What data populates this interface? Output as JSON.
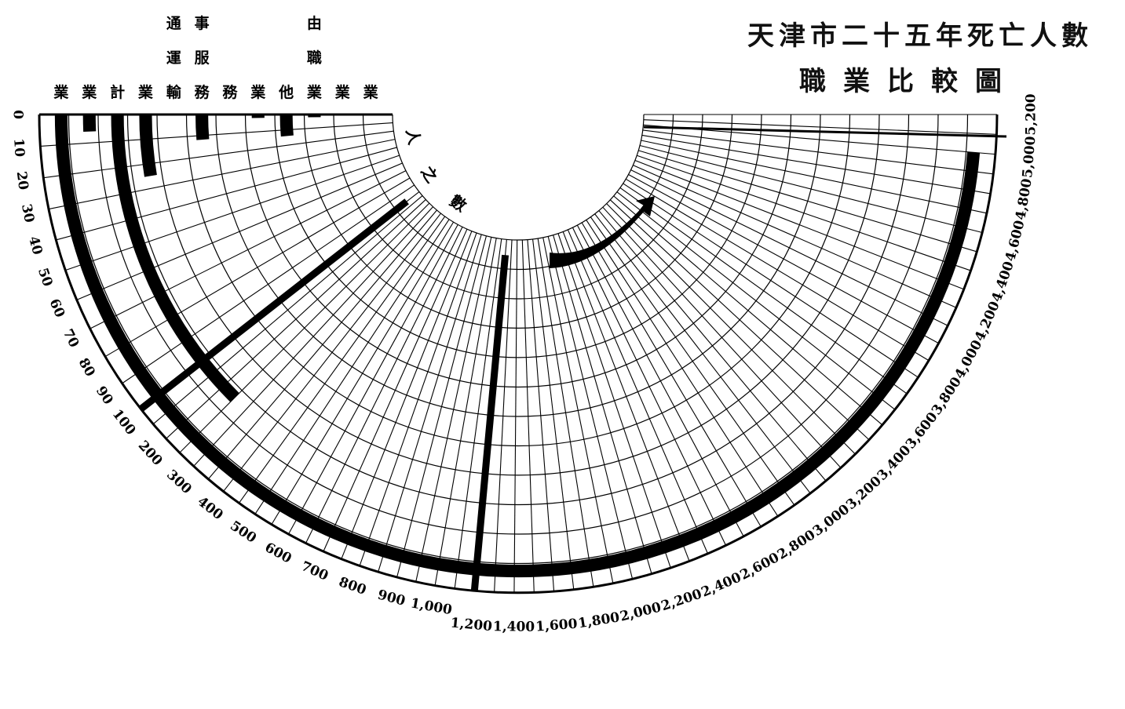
{
  "title_line1": "天津市二十五年死亡人數",
  "title_line2": "職業比較圖",
  "chart_data": {
    "type": "radial-bar",
    "axis_label": "人之數",
    "ticks_inner": [
      "0",
      "10",
      "20",
      "30",
      "40",
      "50",
      "60",
      "70",
      "80",
      "90",
      "100",
      "200",
      "300",
      "400",
      "500",
      "600",
      "700",
      "800",
      "900",
      "1,000"
    ],
    "ticks_outer": [
      "1,200",
      "1,400",
      "1,600",
      "1,800",
      "2,000",
      "2,200",
      "2,400",
      "2,600",
      "2,800",
      "3,000",
      "3,200",
      "3,400",
      "3,600",
      "3,800",
      "4,000",
      "4,200",
      "4,400",
      "4,600",
      "4,800",
      "5,000",
      "5,200"
    ],
    "categories": [
      {
        "top": "",
        "label": "業",
        "value": 5000
      },
      {
        "top": "",
        "label": "業",
        "value": 6
      },
      {
        "top": "",
        "label": "計",
        "value": 250
      },
      {
        "top": "",
        "label": "業",
        "value": 25
      },
      {
        "top": "通運",
        "label": "輸",
        "value": 0
      },
      {
        "top": "事服",
        "label": "務",
        "value": 12
      },
      {
        "top": "",
        "label": "務",
        "value": 0
      },
      {
        "top": "",
        "label": "業",
        "value": 2
      },
      {
        "top": "",
        "label": "他",
        "value": 14
      },
      {
        "top": "由職",
        "label": "業",
        "value": 2
      },
      {
        "top": "",
        "label": "業",
        "value": 0
      },
      {
        "top": "",
        "label": "業",
        "value": 0
      }
    ],
    "spoke_bars": [
      {
        "value": 100
      },
      {
        "value": 1200
      }
    ],
    "colors": {
      "ink": "#000000",
      "paper": "#ffffff"
    }
  }
}
